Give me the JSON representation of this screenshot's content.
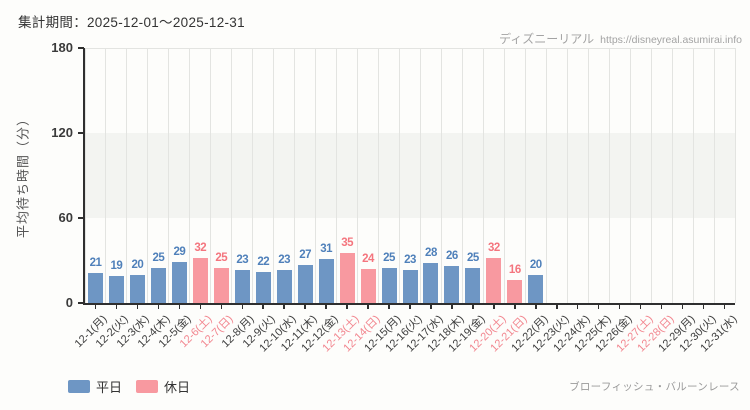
{
  "header": {
    "period_label": "集計期間：2025-12-01～2025-12-31",
    "site_name": "ディズニーリアル",
    "site_url": "https://disneyreal.asumirai.info"
  },
  "legend": {
    "weekday_label": "平日",
    "holiday_label": "休日"
  },
  "footer": {
    "attraction_name": "ブローフィッシュ・バルーンレース"
  },
  "colors": {
    "weekday_bar": "#6e96c4",
    "holiday_bar": "#f899a0",
    "weekday_value_label": "#4f80ba",
    "holiday_value_label": "#f4757e",
    "weekday_tick_label": "#3d3d3d",
    "holiday_tick_label": "#f2868f",
    "axis": "#2f2f2f",
    "gridline": "#e3e4e1",
    "band": "#f3f4f1",
    "y_tick_label": "#3b3b3b"
  },
  "chart_data": {
    "type": "bar",
    "title": "",
    "xlabel": "",
    "ylabel": "平均待ち時間（分）",
    "ylim": [
      0,
      180
    ],
    "yticks": [
      0,
      60,
      120,
      180
    ],
    "band_between": [
      60,
      120
    ],
    "legend_position": "bottom-left",
    "grid": "vertical-columns",
    "categories": [
      "12-1(月)",
      "12-2(火)",
      "12-3(水)",
      "12-4(木)",
      "12-5(金)",
      "12-6(土)",
      "12-7(日)",
      "12-8(月)",
      "12-9(火)",
      "12-10(水)",
      "12-11(木)",
      "12-12(金)",
      "12-13(土)",
      "12-14(日)",
      "12-15(月)",
      "12-16(火)",
      "12-17(水)",
      "12-18(木)",
      "12-19(金)",
      "12-20(土)",
      "12-21(日)",
      "12-22(月)",
      "12-23(火)",
      "12-24(水)",
      "12-25(木)",
      "12-26(金)",
      "12-27(土)",
      "12-28(日)",
      "12-29(月)",
      "12-30(火)",
      "12-31(水)"
    ],
    "day_types": [
      "weekday",
      "weekday",
      "weekday",
      "weekday",
      "weekday",
      "holiday",
      "holiday",
      "weekday",
      "weekday",
      "weekday",
      "weekday",
      "weekday",
      "holiday",
      "holiday",
      "weekday",
      "weekday",
      "weekday",
      "weekday",
      "weekday",
      "holiday",
      "holiday",
      "weekday",
      "weekday",
      "weekday",
      "weekday",
      "weekday",
      "holiday",
      "holiday",
      "weekday",
      "weekday",
      "weekday"
    ],
    "values": [
      21,
      19,
      20,
      25,
      29,
      32,
      25,
      23,
      22,
      23,
      27,
      31,
      35,
      24,
      25,
      23,
      28,
      26,
      25,
      32,
      16,
      20,
      null,
      null,
      null,
      null,
      null,
      null,
      null,
      null,
      null
    ]
  }
}
